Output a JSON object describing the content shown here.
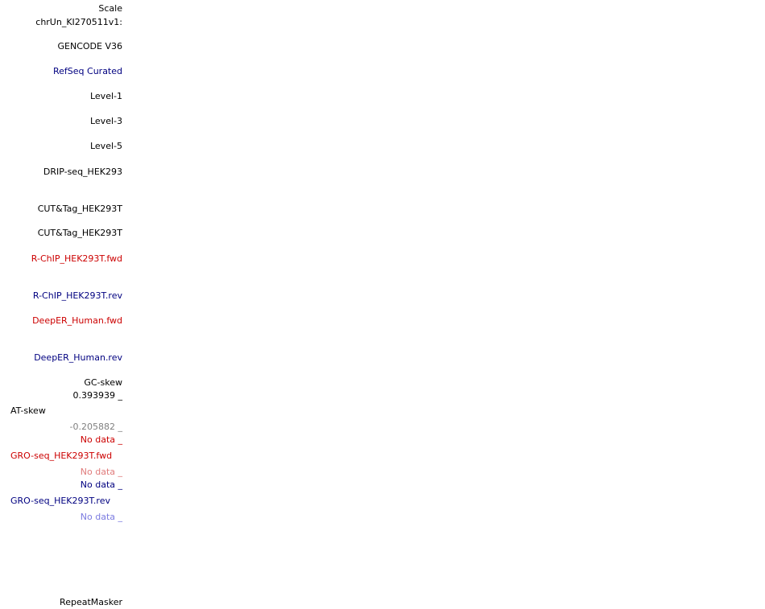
{
  "labels": {
    "scale": "Scale",
    "chrom": "chrUn_KI270511v1:",
    "gencode": "GENCODE V36",
    "refseq": "RefSeq Curated",
    "level1": "Level-1",
    "level3": "Level-3",
    "level5": "Level-5",
    "drip": "DRIP-seq_HEK293",
    "cuttag1": "CUT&Tag_HEK293T",
    "cuttag2": "CUT&Tag_HEK293T",
    "rchip_fwd": "R-ChIP_HEK293T.fwd",
    "rchip_rev": "R-ChIP_HEK293T.rev",
    "deeper_fwd": "DeepER_Human.fwd",
    "deeper_rev": "DeepER_Human.rev",
    "gcskew": "GC-skew",
    "gc_max": "0.393939 _",
    "atskew": "AT-skew",
    "at_min": "-0.205882 _",
    "gro_fwd_nodata_top": "No data _",
    "gro_fwd": "GRO-seq_HEK293T.fwd",
    "gro_fwd_nodata_bottom": "No data _",
    "gro_rev_nodata_top": "No data _",
    "gro_rev": "GRO-seq_HEK293T.rev",
    "gro_rev_nodata_bottom": "No data _",
    "repeatmasker": "RepeatMasker"
  },
  "colors": {
    "black": "#000000",
    "navy": "#000080",
    "red": "#cc0000",
    "gray": "#808080",
    "pink": "#e07b7b",
    "lightblue": "#7b7be0"
  }
}
